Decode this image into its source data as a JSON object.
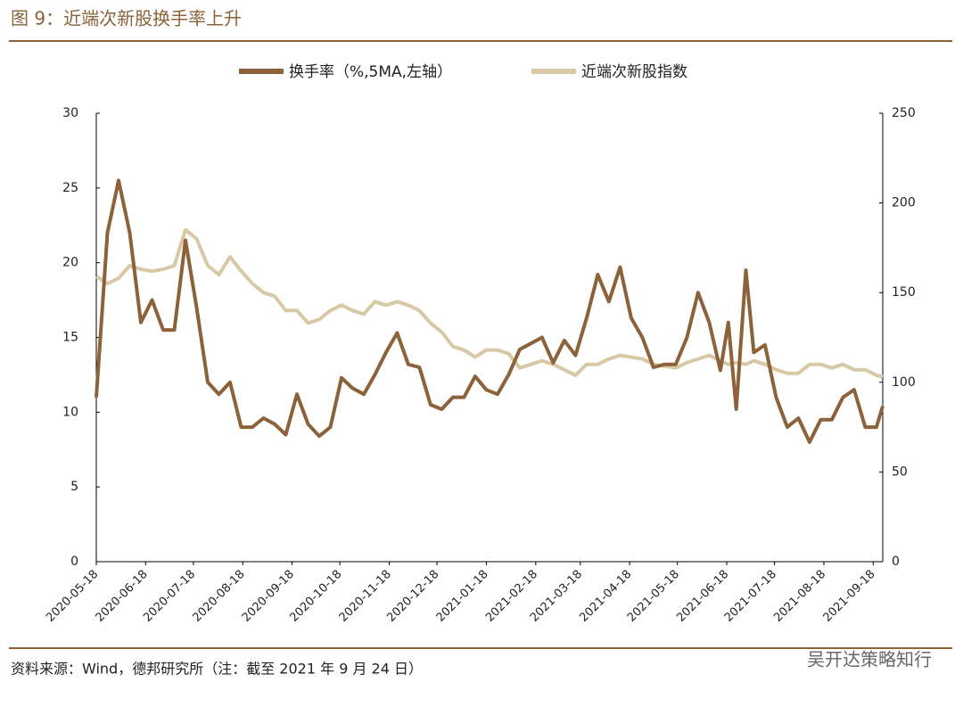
{
  "chart_data": {
    "type": "line",
    "title": "图 9：近端次新股换手率上升",
    "source": "资料来源：Wind，德邦研究所（注：截至 2021 年 9 月 24 日）",
    "watermark": "吴开达策略知行",
    "x": [
      "2020-05-18",
      "2020-05-25",
      "2020-06-01",
      "2020-06-08",
      "2020-06-15",
      "2020-06-22",
      "2020-06-29",
      "2020-07-06",
      "2020-07-13",
      "2020-07-20",
      "2020-07-27",
      "2020-08-03",
      "2020-08-10",
      "2020-08-17",
      "2020-08-24",
      "2020-08-31",
      "2020-09-07",
      "2020-09-14",
      "2020-09-21",
      "2020-09-28",
      "2020-10-05",
      "2020-10-12",
      "2020-10-19",
      "2020-10-26",
      "2020-11-02",
      "2020-11-09",
      "2020-11-16",
      "2020-11-23",
      "2020-11-30",
      "2020-12-07",
      "2020-12-14",
      "2020-12-21",
      "2020-12-28",
      "2021-01-04",
      "2021-01-11",
      "2021-01-18",
      "2021-01-25",
      "2021-02-01",
      "2021-02-08",
      "2021-02-15",
      "2021-02-22",
      "2021-03-01",
      "2021-03-08",
      "2021-03-15",
      "2021-03-22",
      "2021-03-29",
      "2021-04-05",
      "2021-04-12",
      "2021-04-19",
      "2021-04-26",
      "2021-05-03",
      "2021-05-10",
      "2021-05-17",
      "2021-05-24",
      "2021-05-31",
      "2021-06-07",
      "2021-06-14",
      "2021-06-19",
      "2021-06-24",
      "2021-06-30",
      "2021-07-05",
      "2021-07-12",
      "2021-07-19",
      "2021-07-26",
      "2021-08-02",
      "2021-08-09",
      "2021-08-16",
      "2021-08-23",
      "2021-08-30",
      "2021-09-06",
      "2021-09-13",
      "2021-09-20",
      "2021-09-24"
    ],
    "series": [
      {
        "name": "换手率（%,5MA,左轴）",
        "color": "#8b6239",
        "values": [
          11,
          22,
          25.5,
          22,
          16,
          17.5,
          15.5,
          15.5,
          21.5,
          17,
          12,
          11.2,
          12,
          9,
          9,
          9.6,
          9.2,
          8.5,
          11.2,
          9.2,
          8.4,
          9,
          12.3,
          11.6,
          11.2,
          12.5,
          14,
          15.3,
          13.2,
          13,
          10.5,
          10.2,
          11,
          11,
          12.4,
          11.5,
          11.2,
          12.5,
          14.2,
          14.6,
          15,
          13.3,
          14.8,
          13.8,
          16.3,
          19.2,
          17.4,
          19.7,
          16.3,
          15,
          13,
          13.2,
          13.2,
          15,
          18,
          16,
          12.8,
          16,
          10.2,
          19.5,
          14,
          14.5,
          11,
          9,
          9.6,
          8,
          9.5,
          9.5,
          11,
          11.5,
          9,
          9,
          10.4
        ]
      },
      {
        "name": "近端次新股指数",
        "color": "#d8c9a6",
        "axis": "y2",
        "values": [
          159,
          155,
          158,
          165,
          163,
          162,
          163,
          165,
          185,
          180,
          165,
          160,
          170,
          162,
          155,
          150,
          148,
          140,
          140,
          133,
          135,
          140,
          143,
          140,
          138,
          145,
          143,
          145,
          143,
          140,
          133,
          128,
          120,
          118,
          114,
          118,
          118,
          116,
          108,
          110,
          112,
          110,
          107,
          104,
          110,
          110,
          113,
          115,
          114,
          113,
          110,
          109,
          108,
          111,
          113,
          115,
          112,
          110,
          111,
          110,
          112,
          110,
          107,
          105,
          105,
          110,
          110,
          108,
          110,
          107,
          107,
          104,
          103
        ]
      }
    ],
    "xlim": [
      "2020-05-18",
      "2021-09-24"
    ],
    "xticks": [
      "2020-05-18",
      "2020-06-18",
      "2020-07-18",
      "2020-08-18",
      "2020-09-18",
      "2020-10-18",
      "2020-11-18",
      "2020-12-18",
      "2021-01-18",
      "2021-02-18",
      "2021-03-18",
      "2021-04-18",
      "2021-05-18",
      "2021-06-18",
      "2021-07-18",
      "2021-08-18",
      "2021-09-18"
    ],
    "ylim": [
      0,
      30
    ],
    "yticks": [
      0,
      5,
      10,
      15,
      20,
      25,
      30
    ],
    "y2lim": [
      0,
      250
    ],
    "y2ticks": [
      0,
      50,
      100,
      150,
      200,
      250
    ],
    "legend": "top"
  }
}
